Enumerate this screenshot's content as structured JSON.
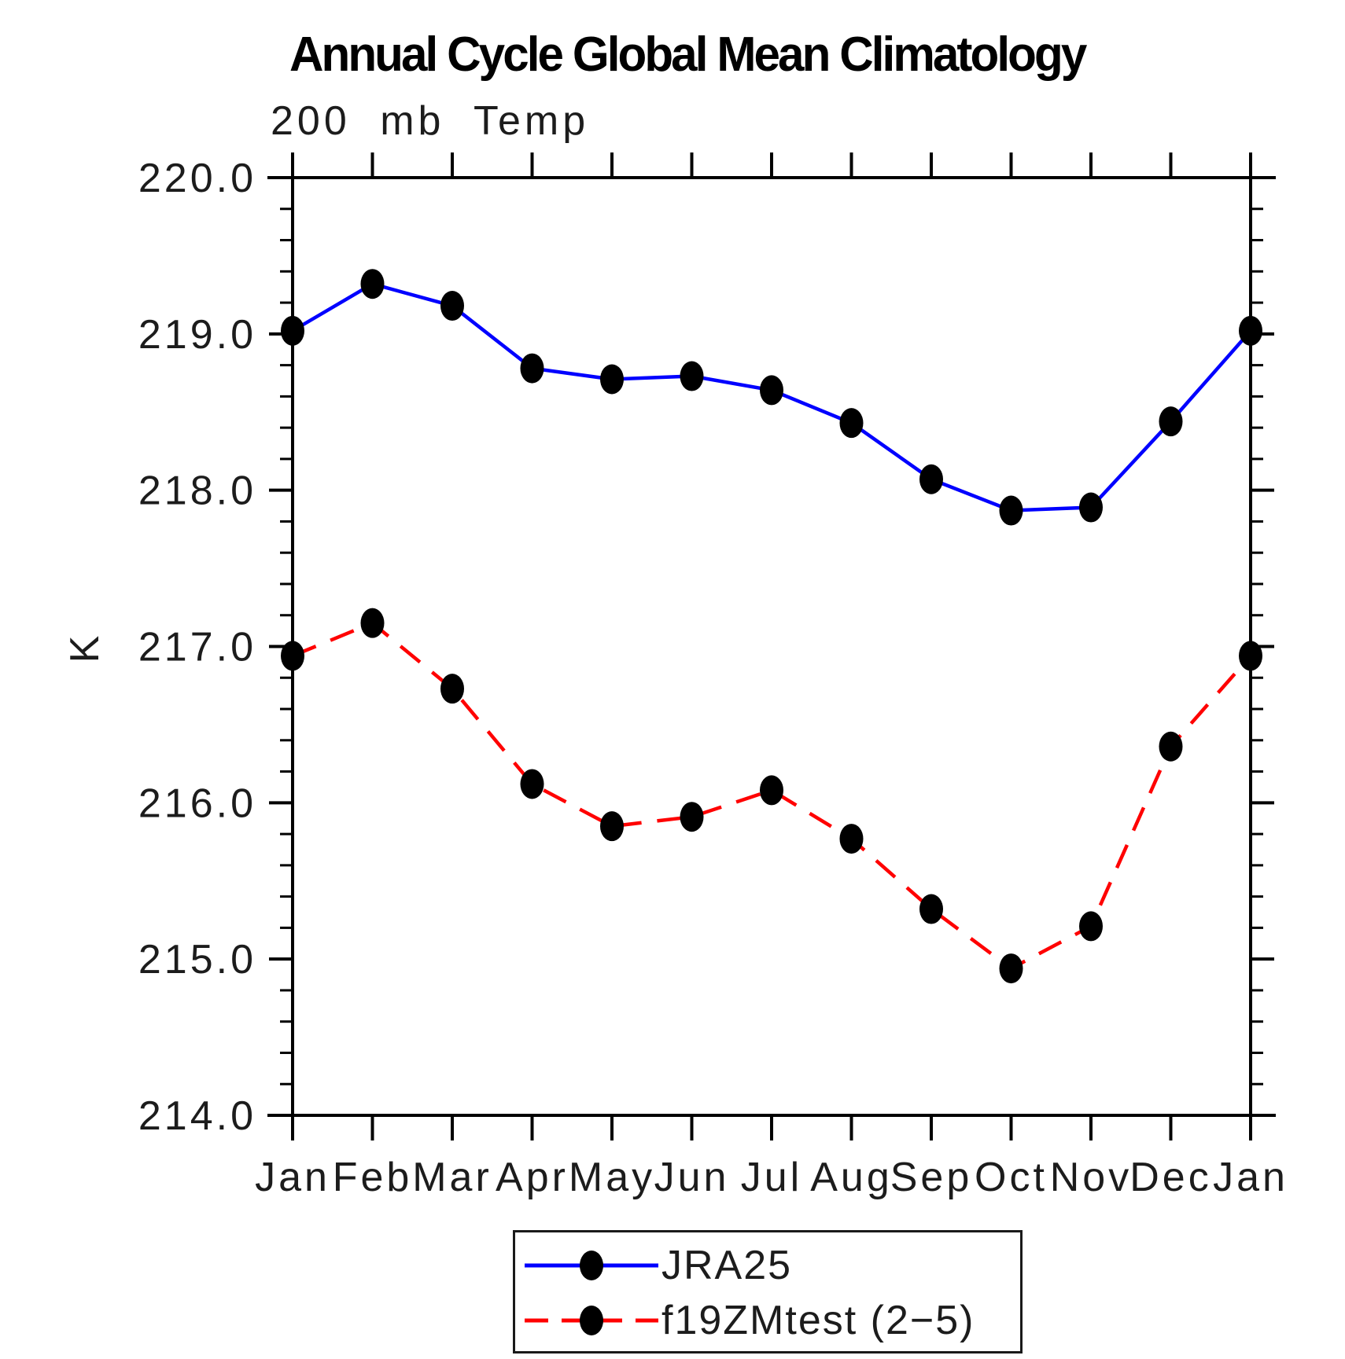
{
  "chart_data": {
    "type": "line",
    "title": "Annual Cycle Global Mean Climatology",
    "subtitle": "200 mb Temp",
    "ylabel": "K",
    "xlabel": "",
    "categories": [
      "Jan",
      "Feb",
      "Mar",
      "Apr",
      "May",
      "Jun",
      "Jul",
      "Aug",
      "Sep",
      "Oct",
      "Nov",
      "Dec",
      "Jan"
    ],
    "ylim": [
      214.0,
      220.0
    ],
    "ytick_step": 1.0,
    "yminor_step": 0.2,
    "grid": "off",
    "legend_position": "bottom-center",
    "marker": "filled-ellipse",
    "marker_color": "#000000",
    "axis_color": "#000000",
    "series": [
      {
        "name": "JRA25",
        "color": "#0000ff",
        "line_style": "solid",
        "values": [
          219.02,
          219.32,
          219.18,
          218.78,
          218.71,
          218.73,
          218.64,
          218.43,
          218.07,
          217.87,
          217.89,
          218.44,
          219.02
        ]
      },
      {
        "name": "f19ZMtest (2−5)",
        "color": "#ff0000",
        "line_style": "dashed",
        "values": [
          216.94,
          217.15,
          216.73,
          216.12,
          215.85,
          215.91,
          216.08,
          215.77,
          215.32,
          214.94,
          215.21,
          216.36,
          216.94
        ]
      }
    ]
  }
}
